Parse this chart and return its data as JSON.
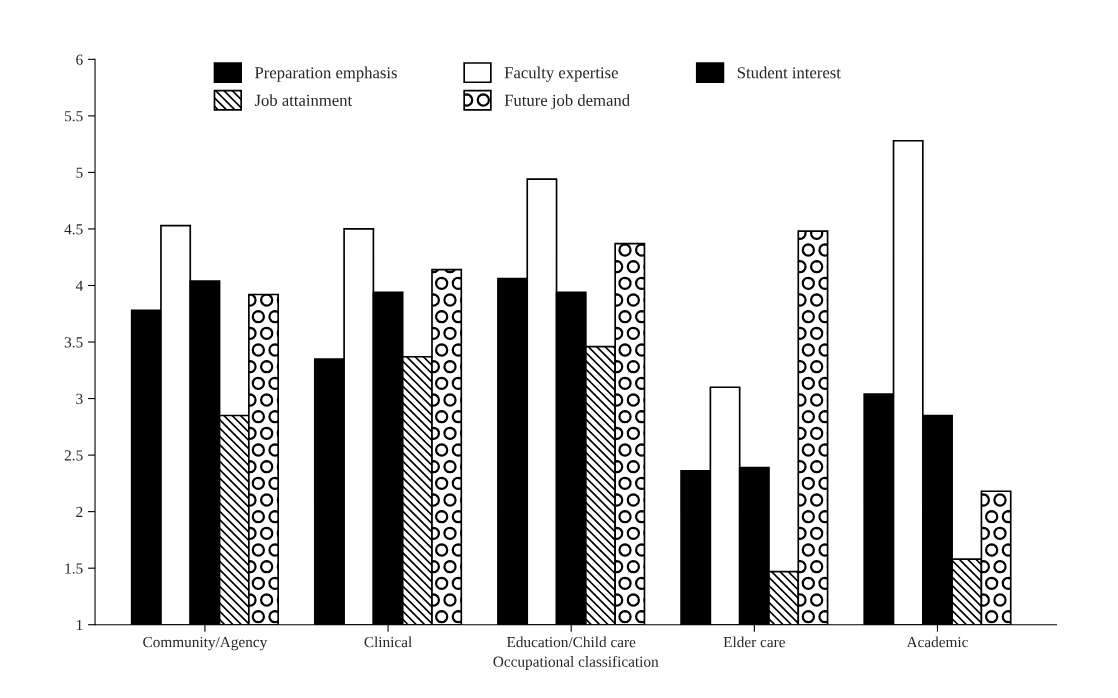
{
  "chart_data": {
    "type": "bar",
    "xlabel": "Occupational classification",
    "categories": [
      "Community/Agency",
      "Clinical",
      "Education/Child care",
      "Elder care",
      "Academic"
    ],
    "series": [
      {
        "name": "Preparation emphasis",
        "color": "#000000",
        "values": [
          3.78,
          3.35,
          4.06,
          2.36,
          3.04
        ]
      },
      {
        "name": "Faculty expertise",
        "color": "#ffffff",
        "values": [
          4.53,
          4.5,
          4.94,
          3.1,
          5.28
        ]
      },
      {
        "name": "Student interest",
        "color": "#000000",
        "values": [
          4.04,
          3.94,
          3.94,
          2.39,
          2.85
        ]
      },
      {
        "name": "Job attainment",
        "color": "#000000",
        "values": [
          2.85,
          3.37,
          3.46,
          1.47,
          1.58
        ]
      },
      {
        "name": "Future job demand",
        "color": "#000000",
        "values": [
          3.92,
          4.14,
          4.37,
          4.48,
          2.18
        ]
      }
    ],
    "ylim": [
      1,
      6
    ],
    "yticks": [
      1,
      1.5,
      2,
      2.5,
      3,
      3.5,
      4,
      4.5,
      5,
      5.5,
      6
    ],
    "grid": false,
    "legend": "top"
  }
}
